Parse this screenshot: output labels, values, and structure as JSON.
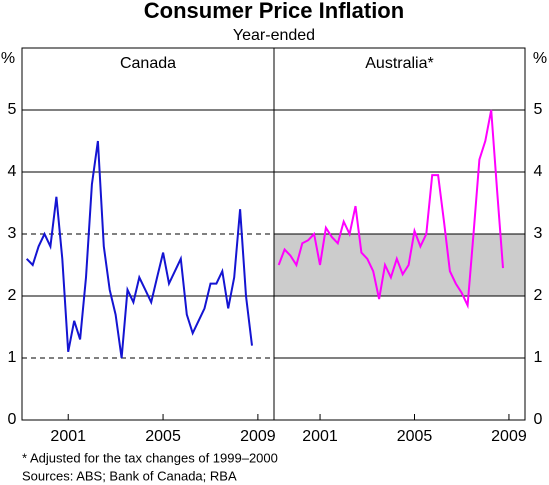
{
  "title": "Consumer Price Inflation",
  "subtitle": "Year-ended",
  "notes": [
    "*   Adjusted for the tax changes of 1999–2000",
    "Sources: ABS; Bank of Canada; RBA"
  ],
  "chart_data": [
    {
      "type": "line",
      "panel_title": "Canada",
      "ylabel": "%",
      "x": [
        1999.25,
        1999.5,
        1999.75,
        2000,
        2000.25,
        2000.5,
        2000.75,
        2001,
        2001.25,
        2001.5,
        2001.75,
        2002,
        2002.25,
        2002.5,
        2002.75,
        2003,
        2003.25,
        2003.5,
        2003.75,
        2004,
        2004.25,
        2004.5,
        2004.75,
        2005,
        2005.25,
        2005.5,
        2005.75,
        2006,
        2006.25,
        2006.5,
        2006.75,
        2007,
        2007.25,
        2007.5,
        2007.75,
        2008,
        2008.25,
        2008.5,
        2008.75
      ],
      "series": [
        {
          "name": "Canada",
          "color": "#1414d2",
          "values": [
            2.6,
            2.5,
            2.8,
            3.0,
            2.8,
            3.6,
            2.6,
            1.1,
            1.6,
            1.3,
            2.3,
            3.8,
            4.5,
            2.8,
            2.1,
            1.7,
            1.0,
            2.1,
            1.9,
            2.3,
            2.1,
            1.9,
            2.3,
            2.7,
            2.2,
            2.4,
            2.6,
            1.7,
            1.4,
            1.6,
            1.8,
            2.2,
            2.2,
            2.4,
            1.8,
            2.3,
            3.4,
            2.0,
            1.2
          ]
        }
      ],
      "xlim": [
        1999.05,
        2009.68
      ],
      "xticks": [
        2001,
        2005,
        2009
      ],
      "ylim": [
        0,
        6
      ],
      "yticks": [
        0,
        1,
        2,
        3,
        4,
        5
      ],
      "reference_lines": [
        1,
        3
      ]
    },
    {
      "type": "line",
      "panel_title": "Australia*",
      "ylabel": "%",
      "x": [
        1999.25,
        1999.5,
        1999.75,
        2000,
        2000.25,
        2000.5,
        2000.75,
        2001,
        2001.25,
        2001.5,
        2001.75,
        2002,
        2002.25,
        2002.5,
        2002.75,
        2003,
        2003.25,
        2003.5,
        2003.75,
        2004,
        2004.25,
        2004.5,
        2004.75,
        2005,
        2005.25,
        2005.5,
        2005.75,
        2006,
        2006.25,
        2006.5,
        2006.75,
        2007,
        2007.25,
        2007.5,
        2007.75,
        2008,
        2008.25,
        2008.5,
        2008.75
      ],
      "series": [
        {
          "name": "Australia",
          "color": "#ff00ff",
          "values": [
            2.5,
            2.75,
            2.65,
            2.5,
            2.85,
            2.9,
            3.0,
            2.5,
            3.1,
            2.95,
            2.85,
            3.2,
            3.0,
            3.45,
            2.7,
            2.6,
            2.4,
            1.95,
            2.5,
            2.3,
            2.6,
            2.35,
            2.5,
            3.05,
            2.8,
            3.0,
            3.95,
            3.95,
            3.2,
            2.4,
            2.2,
            2.05,
            1.85,
            3.0,
            4.2,
            4.5,
            5.0,
            3.7,
            2.45
          ]
        }
      ],
      "xlim": [
        1999.05,
        2009.68
      ],
      "xticks": [
        2001,
        2005,
        2009
      ],
      "ylim": [
        0,
        6
      ],
      "yticks": [
        0,
        1,
        2,
        3,
        4,
        5
      ],
      "target_band": [
        2,
        3
      ],
      "band_color": "#cccccc"
    }
  ]
}
